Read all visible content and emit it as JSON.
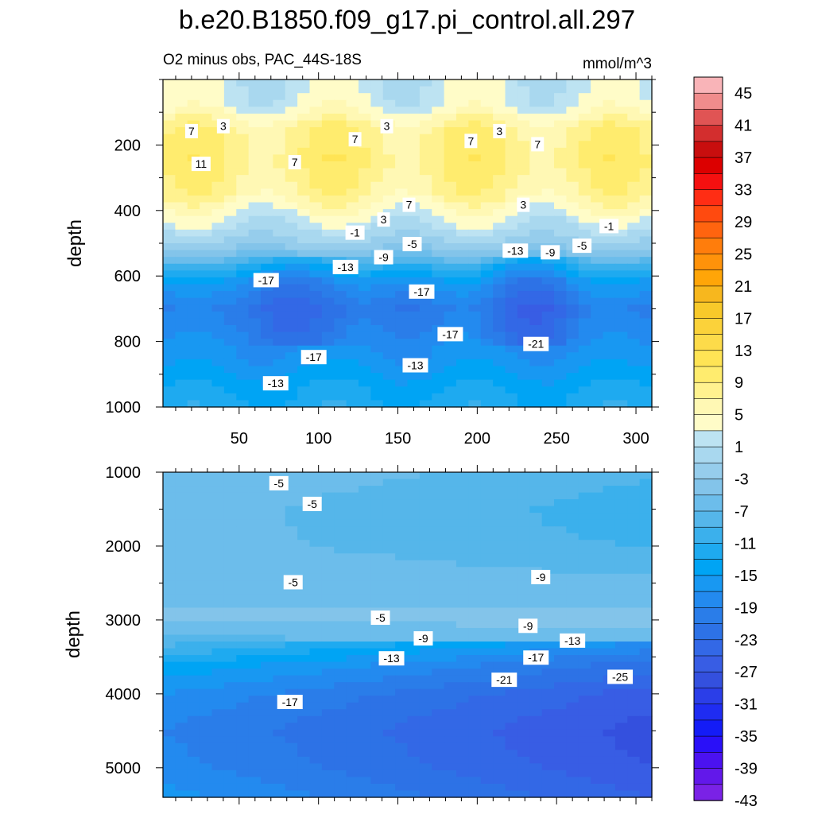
{
  "title": "b.e20.B1850.f09_g17.pi_control.all.297",
  "chart_data": [
    {
      "type": "heatmap",
      "panel": "upper",
      "subtitle_left": "O2 minus obs, PAC_44S-18S",
      "subtitle_right": "mmol/m^3",
      "ylabel": "depth",
      "xlim": [
        2,
        310
      ],
      "ylim": [
        1000,
        0
      ],
      "xticks": [
        50,
        100,
        150,
        200,
        250,
        300
      ],
      "yticks": [
        200,
        400,
        600,
        800,
        1000
      ],
      "depth_profile": [
        [
          0,
          2
        ],
        [
          80,
          3
        ],
        [
          110,
          5
        ],
        [
          150,
          8
        ],
        [
          250,
          9
        ],
        [
          350,
          7
        ],
        [
          420,
          3
        ],
        [
          470,
          0
        ],
        [
          520,
          -3
        ],
        [
          570,
          -10
        ],
        [
          620,
          -16
        ],
        [
          700,
          -20
        ],
        [
          780,
          -18
        ],
        [
          860,
          -16
        ],
        [
          950,
          -13
        ],
        [
          1000,
          -12
        ]
      ],
      "contour_labels": [
        {
          "text": "7",
          "x": 20,
          "y": 160
        },
        {
          "text": "3",
          "x": 40,
          "y": 145
        },
        {
          "text": "11",
          "x": 26,
          "y": 260
        },
        {
          "text": "7",
          "x": 85,
          "y": 255
        },
        {
          "text": "7",
          "x": 123,
          "y": 185
        },
        {
          "text": "3",
          "x": 143,
          "y": 145
        },
        {
          "text": "7",
          "x": 196,
          "y": 190
        },
        {
          "text": "3",
          "x": 214,
          "y": 160
        },
        {
          "text": "7",
          "x": 238,
          "y": 200
        },
        {
          "text": "7",
          "x": 157,
          "y": 385
        },
        {
          "text": "3",
          "x": 141,
          "y": 430
        },
        {
          "text": "3",
          "x": 229,
          "y": 385
        },
        {
          "text": "-1",
          "x": 123,
          "y": 470
        },
        {
          "text": "-5",
          "x": 159,
          "y": 505
        },
        {
          "text": "-1",
          "x": 283,
          "y": 450
        },
        {
          "text": "-9",
          "x": 141,
          "y": 545
        },
        {
          "text": "-13",
          "x": 117,
          "y": 575
        },
        {
          "text": "-13",
          "x": 224,
          "y": 525
        },
        {
          "text": "-9",
          "x": 246,
          "y": 530
        },
        {
          "text": "-5",
          "x": 266,
          "y": 510
        },
        {
          "text": "-17",
          "x": 67,
          "y": 615
        },
        {
          "text": "-17",
          "x": 165,
          "y": 650
        },
        {
          "text": "-17",
          "x": 183,
          "y": 780
        },
        {
          "text": "-21",
          "x": 237,
          "y": 810
        },
        {
          "text": "-17",
          "x": 97,
          "y": 850
        },
        {
          "text": "-13",
          "x": 161,
          "y": 875
        },
        {
          "text": "-13",
          "x": 73,
          "y": 930
        }
      ]
    },
    {
      "type": "heatmap",
      "panel": "lower",
      "ylabel": "depth",
      "xlim": [
        2,
        310
      ],
      "ylim": [
        5400,
        1000
      ],
      "yticks": [
        1000,
        2000,
        3000,
        4000,
        5000
      ],
      "depth_profile": [
        [
          1000,
          -5
        ],
        [
          1500,
          -6
        ],
        [
          2000,
          -6
        ],
        [
          2500,
          -5
        ],
        [
          3000,
          -5
        ],
        [
          3300,
          -8
        ],
        [
          3600,
          -13
        ],
        [
          4000,
          -17
        ],
        [
          4500,
          -19
        ],
        [
          5000,
          -18
        ],
        [
          5400,
          -16
        ]
      ],
      "contour_labels": [
        {
          "text": "-5",
          "x": 75,
          "y": 1160
        },
        {
          "text": "-5",
          "x": 96,
          "y": 1440
        },
        {
          "text": "-5",
          "x": 84,
          "y": 2500
        },
        {
          "text": "-5",
          "x": 139,
          "y": 2980
        },
        {
          "text": "-9",
          "x": 240,
          "y": 2430
        },
        {
          "text": "-9",
          "x": 166,
          "y": 3260
        },
        {
          "text": "-9",
          "x": 232,
          "y": 3090
        },
        {
          "text": "-13",
          "x": 146,
          "y": 3530
        },
        {
          "text": "-13",
          "x": 260,
          "y": 3290
        },
        {
          "text": "-17",
          "x": 237,
          "y": 3520
        },
        {
          "text": "-21",
          "x": 217,
          "y": 3820
        },
        {
          "text": "-25",
          "x": 290,
          "y": 3780
        },
        {
          "text": "-17",
          "x": 82,
          "y": 4120
        }
      ]
    }
  ],
  "colorbar": {
    "labels": [
      "45",
      "41",
      "37",
      "33",
      "29",
      "25",
      "21",
      "17",
      "13",
      "9",
      "5",
      "1",
      "-3",
      "-7",
      "-11",
      "-15",
      "-19",
      "-23",
      "-27",
      "-31",
      "-35",
      "-39",
      "-43"
    ],
    "colors": [
      "#f9b4b8",
      "#f08c8c",
      "#e05454",
      "#d32e2e",
      "#c80e0e",
      "#dc0000",
      "#f51010",
      "#ff2d14",
      "#ff4a0f",
      "#ff640f",
      "#ff7d0c",
      "#ff920a",
      "#ffa508",
      "#f7b71e",
      "#f8c92a",
      "#fbd23a",
      "#fddb4a",
      "#ffe455",
      "#ffec6e",
      "#fff28f",
      "#fff8b4",
      "#fffcc8",
      "#bde3f2",
      "#a9d8ef",
      "#96cdec",
      "#83c4ea",
      "#6cbdeb",
      "#55b6ea",
      "#3bb0ec",
      "#1eaaf0",
      "#00a4f4",
      "#1898f2",
      "#238aef",
      "#2a7de9",
      "#2d72e6",
      "#3368e6",
      "#385de4",
      "#3450de",
      "#2b3ee8",
      "#1f2cf2",
      "#141cf6",
      "#2a10f8",
      "#4b12f0",
      "#6218ea",
      "#7a22e6"
    ]
  }
}
